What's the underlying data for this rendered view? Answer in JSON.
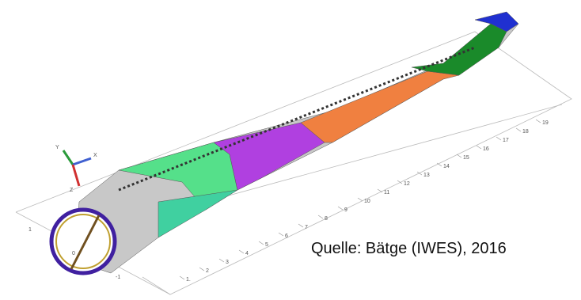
{
  "caption": "Quelle: Bätge (IWES), 2016",
  "scale_labels": [
    "1.",
    "2",
    "3",
    "4",
    "5",
    "6",
    "7",
    "8",
    "9",
    "10",
    "11",
    "12",
    "13",
    "14",
    "15",
    "16",
    "17",
    "18",
    "19"
  ],
  "cross_labels": [
    "1",
    "0",
    "-1"
  ],
  "triad": [
    "Y",
    "X",
    "Z"
  ]
}
